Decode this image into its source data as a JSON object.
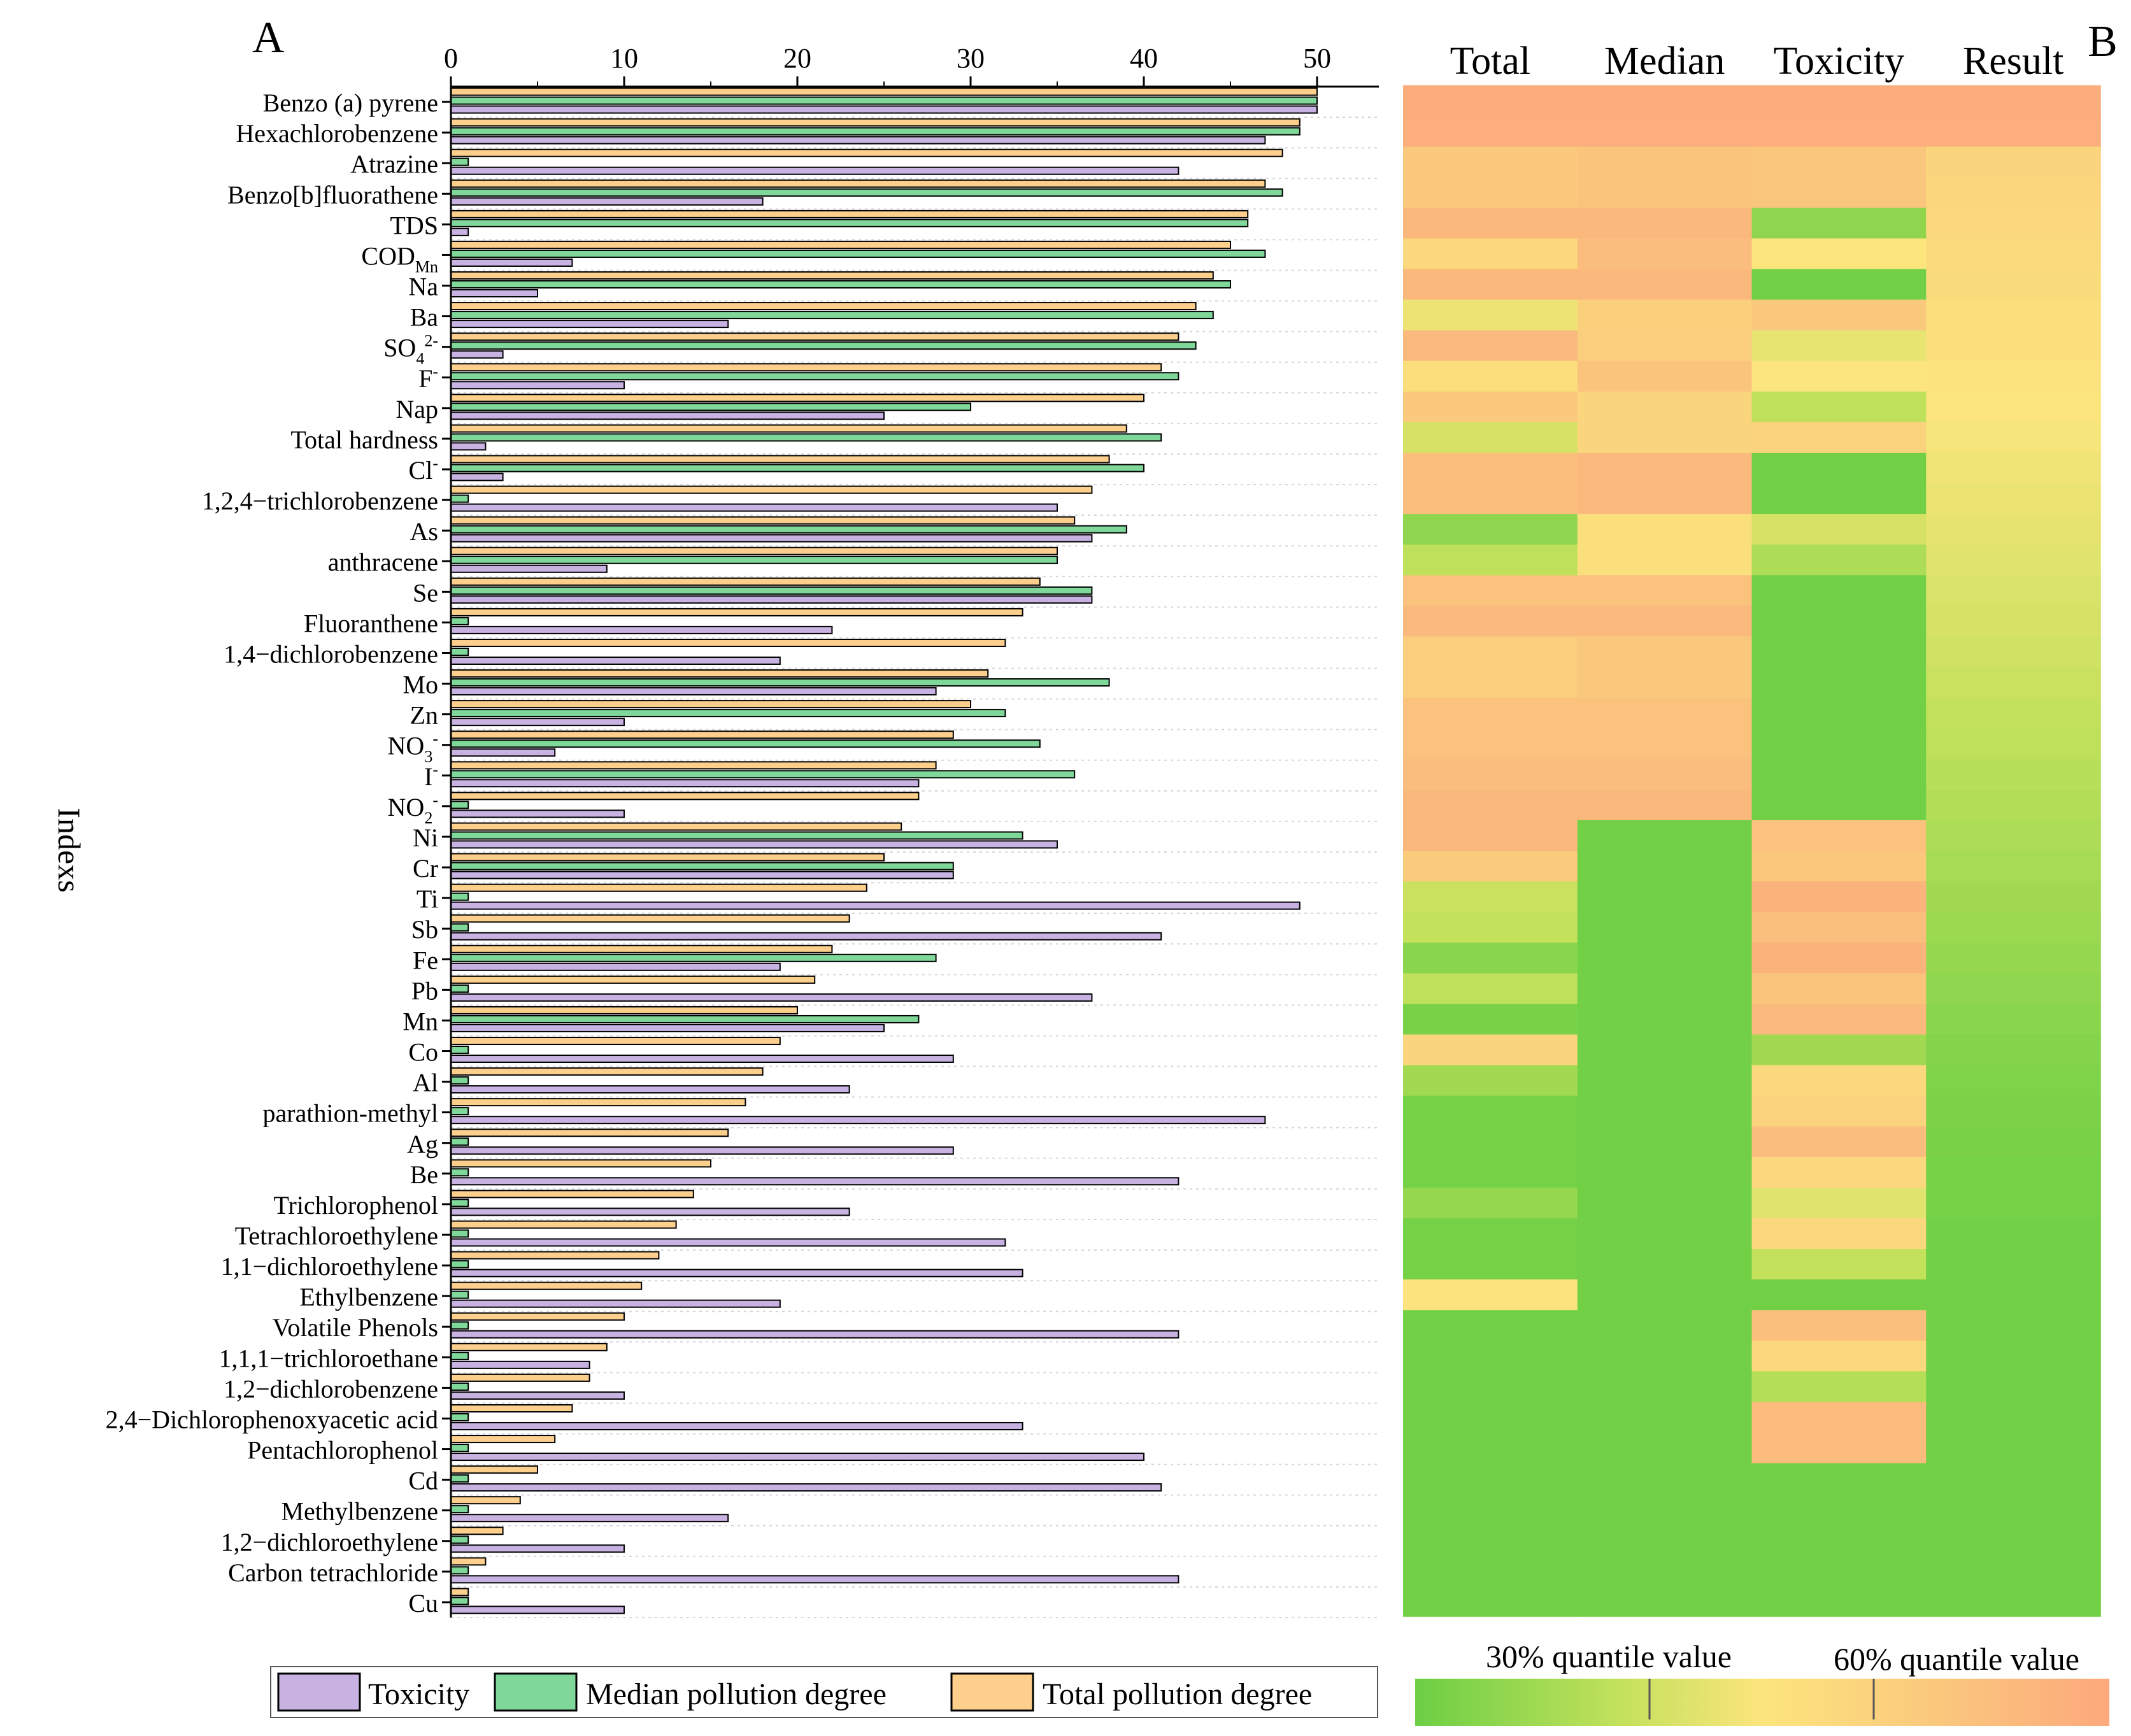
{
  "panel_a_letter": "A",
  "panel_b_letter": "B",
  "chart_data": [
    {
      "type": "bar",
      "orientation": "horizontal",
      "ylabel": "Indexs",
      "xlim": [
        0,
        54
      ],
      "x_ticks": [
        "0",
        "10",
        "20",
        "30",
        "40",
        "50"
      ],
      "x_tick_values": [
        0,
        10,
        20,
        30,
        40,
        50
      ],
      "categories": [
        "Benzo (a) pyrene",
        "Hexachlorobenzene",
        "Atrazine",
        "Benzo[b]fluorathene",
        "TDS",
        "COD",
        "Na",
        "Ba",
        "SO",
        "F",
        "Nap",
        "Total hardness",
        "Cl",
        "1,2,4−trichlorobenzene",
        "As",
        "anthracene",
        "Se",
        "Fluoranthene",
        "1,4−dichlorobenzene",
        "Mo",
        "Zn",
        "NO",
        "I",
        "NO",
        "Ni",
        "Cr",
        "Ti",
        "Sb",
        "Fe",
        "Pb",
        "Mn",
        "Co",
        "Al",
        "parathion-methyl",
        "Ag",
        "Be",
        "Trichlorophenol",
        "Tetrachloroethylene",
        "1,1−dichloroethylene",
        "Ethylbenzene",
        "Volatile Phenols",
        "1,1,1−trichloroethane",
        "1,2−dichlorobenzene",
        "2,4−Dichlorophenoxyacetic acid",
        "Pentachlorophenol",
        "Cd",
        "Methylbenzene",
        "1,2−dichloroethylene",
        "Carbon tetrachloride",
        "Cu"
      ],
      "label_subscripts": {
        "5": "Mn",
        "8": "4",
        "21": "3",
        "23": "2"
      },
      "label_superscripts": {
        "8": "2-",
        "9": "-",
        "12": "-",
        "21": "-",
        "22": "-",
        "23": "-"
      },
      "series": [
        {
          "name": "Total pollution degree",
          "color": "#fccf8c",
          "values": [
            50,
            49,
            48,
            47,
            46,
            45,
            44,
            43,
            42,
            41,
            40,
            39,
            38,
            37,
            36,
            35,
            34,
            33,
            32,
            31,
            30,
            29,
            28,
            27,
            26,
            25,
            24,
            23,
            22,
            21,
            20,
            19,
            18,
            17,
            16,
            15,
            14,
            13,
            12,
            11,
            10,
            9,
            8,
            7,
            6,
            5,
            4,
            3,
            2,
            1
          ]
        },
        {
          "name": "Median pollution degree",
          "color": "#7fd89a",
          "values": [
            50,
            49,
            1,
            48,
            46,
            47,
            45,
            44,
            43,
            42,
            30,
            41,
            40,
            1,
            39,
            35,
            37,
            1,
            1,
            38,
            32,
            34,
            36,
            1,
            33,
            29,
            1,
            1,
            28,
            1,
            27,
            1,
            1,
            1,
            1,
            1,
            1,
            1,
            1,
            1,
            1,
            1,
            1,
            1,
            1,
            1,
            1,
            1,
            1,
            1
          ]
        },
        {
          "name": "Toxicity",
          "color": "#c8b2e2",
          "values": [
            50,
            47,
            42,
            18,
            1,
            7,
            5,
            16,
            3,
            10,
            25,
            2,
            3,
            35,
            37,
            9,
            37,
            22,
            19,
            28,
            10,
            6,
            27,
            10,
            35,
            29,
            49,
            41,
            19,
            37,
            25,
            29,
            23,
            47,
            29,
            42,
            23,
            32,
            33,
            19,
            42,
            8,
            10,
            33,
            40,
            41,
            16,
            10,
            42,
            10
          ]
        }
      ],
      "legend": [
        "Toxicity",
        "Median pollution degree",
        "Total pollution degree"
      ]
    },
    {
      "type": "heatmap",
      "columns": [
        "Total",
        "Median",
        "Toxicity",
        "Result"
      ],
      "row_labels_ref": "same as bar chart categories",
      "scale_min_color": "#6ccf44",
      "scale_mid_color": "#fce57d",
      "scale_max_color": "#fca97c",
      "scale_labels": [
        "30% quantile value",
        "60% quantile value"
      ],
      "values": [
        [
          0.97,
          0.97,
          0.97,
          0.97
        ],
        [
          0.96,
          0.96,
          0.96,
          0.96
        ],
        [
          0.74,
          0.78,
          0.77,
          0.64
        ],
        [
          0.74,
          0.78,
          0.77,
          0.63
        ],
        [
          0.88,
          0.88,
          0.12,
          0.62
        ],
        [
          0.62,
          0.84,
          0.5,
          0.6
        ],
        [
          0.88,
          0.88,
          0.02,
          0.58
        ],
        [
          0.45,
          0.68,
          0.74,
          0.56
        ],
        [
          0.86,
          0.7,
          0.43,
          0.55
        ],
        [
          0.55,
          0.78,
          0.5,
          0.52
        ],
        [
          0.74,
          0.64,
          0.28,
          0.5
        ],
        [
          0.36,
          0.64,
          0.66,
          0.48
        ],
        [
          0.83,
          0.86,
          0.02,
          0.46
        ],
        [
          0.83,
          0.86,
          0.02,
          0.44
        ],
        [
          0.12,
          0.55,
          0.36,
          0.42
        ],
        [
          0.28,
          0.55,
          0.22,
          0.4
        ],
        [
          0.8,
          0.8,
          0.02,
          0.38
        ],
        [
          0.86,
          0.86,
          0.02,
          0.36
        ],
        [
          0.7,
          0.75,
          0.02,
          0.34
        ],
        [
          0.7,
          0.75,
          0.02,
          0.32
        ],
        [
          0.8,
          0.8,
          0.02,
          0.3
        ],
        [
          0.8,
          0.8,
          0.02,
          0.28
        ],
        [
          0.84,
          0.84,
          0.02,
          0.26
        ],
        [
          0.88,
          0.88,
          0.02,
          0.24
        ],
        [
          0.88,
          0.02,
          0.8,
          0.22
        ],
        [
          0.72,
          0.02,
          0.76,
          0.2
        ],
        [
          0.32,
          0.02,
          0.92,
          0.18
        ],
        [
          0.3,
          0.02,
          0.82,
          0.16
        ],
        [
          0.1,
          0.02,
          0.92,
          0.14
        ],
        [
          0.28,
          0.02,
          0.78,
          0.12
        ],
        [
          0.04,
          0.02,
          0.86,
          0.1
        ],
        [
          0.64,
          0.02,
          0.18,
          0.08
        ],
        [
          0.18,
          0.02,
          0.62,
          0.06
        ],
        [
          0.03,
          0.02,
          0.66,
          0.05
        ],
        [
          0.03,
          0.02,
          0.84,
          0.04
        ],
        [
          0.03,
          0.02,
          0.62,
          0.03
        ],
        [
          0.14,
          0.02,
          0.4,
          0.03
        ],
        [
          0.03,
          0.02,
          0.62,
          0.02
        ],
        [
          0.03,
          0.02,
          0.3,
          0.02
        ],
        [
          0.52,
          0.02,
          0.02,
          0.02
        ],
        [
          0.02,
          0.02,
          0.82,
          0.02
        ],
        [
          0.02,
          0.02,
          0.62,
          0.02
        ],
        [
          0.02,
          0.02,
          0.25,
          0.02
        ],
        [
          0.02,
          0.02,
          0.85,
          0.02
        ],
        [
          0.02,
          0.02,
          0.85,
          0.02
        ],
        [
          0.02,
          0.02,
          0.02,
          0.02
        ],
        [
          0.02,
          0.02,
          0.02,
          0.02
        ],
        [
          0.02,
          0.02,
          0.02,
          0.02
        ],
        [
          0.02,
          0.02,
          0.02,
          0.02
        ],
        [
          0.02,
          0.02,
          0.02,
          0.02
        ]
      ]
    }
  ]
}
